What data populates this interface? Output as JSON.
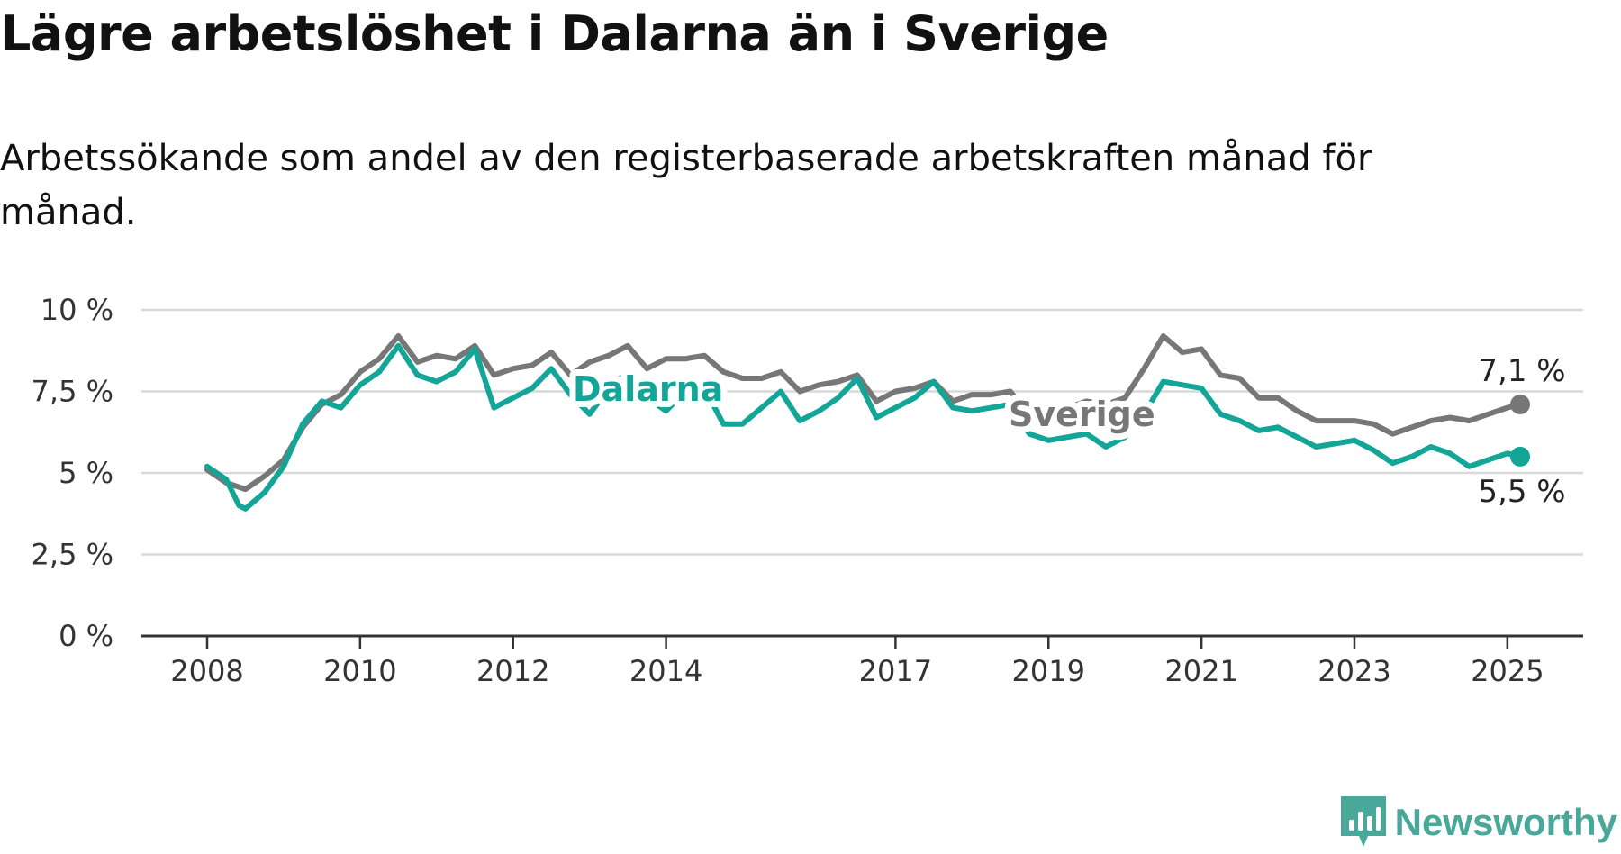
{
  "title": "Lägre arbetslöshet i Dalarna än i Sverige",
  "subtitle": "Arbetssökande som andel av den registerbaserade arbetskraften månad för månad.",
  "brand": {
    "name": "Newsworthy",
    "icon": "newsworthy-logo-icon",
    "color": "#4aa89a"
  },
  "chart_data": {
    "type": "line",
    "title": "Lägre arbetslöshet i Dalarna än i Sverige",
    "subtitle": "Arbetssökande som andel av den registerbaserade arbetskraften månad för månad.",
    "x_start": "2008-01",
    "x_end": "2025-03",
    "y_ticks": [
      0,
      2.5,
      5,
      7.5,
      10
    ],
    "y_tick_labels": [
      "0 %",
      "2,5 %",
      "5 %",
      "7,5 %",
      "10 %"
    ],
    "ylim": [
      0,
      10
    ],
    "x_tick_labels": [
      "2008",
      "2010",
      "2012",
      "2014",
      "2017",
      "2019",
      "2021",
      "2023",
      "2025"
    ],
    "x_tick_dates": [
      "2008-01",
      "2010-01",
      "2012-01",
      "2014-01",
      "2017-01",
      "2019-01",
      "2021-01",
      "2023-01",
      "2025-01"
    ],
    "grid": true,
    "legend": "inline labels",
    "series": [
      {
        "name": "Sverige",
        "color": "#777777",
        "end_label": "7,1 %",
        "points": [
          [
            "2008-01",
            5.1
          ],
          [
            "2008-04",
            4.7
          ],
          [
            "2008-07",
            4.5
          ],
          [
            "2008-10",
            4.9
          ],
          [
            "2009-01",
            5.4
          ],
          [
            "2009-04",
            6.4
          ],
          [
            "2009-07",
            7.1
          ],
          [
            "2009-10",
            7.4
          ],
          [
            "2010-01",
            8.1
          ],
          [
            "2010-04",
            8.5
          ],
          [
            "2010-07",
            9.2
          ],
          [
            "2010-10",
            8.4
          ],
          [
            "2011-01",
            8.6
          ],
          [
            "2011-04",
            8.5
          ],
          [
            "2011-07",
            8.9
          ],
          [
            "2011-10",
            8.0
          ],
          [
            "2012-01",
            8.2
          ],
          [
            "2012-04",
            8.3
          ],
          [
            "2012-07",
            8.7
          ],
          [
            "2012-10",
            8.0
          ],
          [
            "2013-01",
            8.4
          ],
          [
            "2013-04",
            8.6
          ],
          [
            "2013-07",
            8.9
          ],
          [
            "2013-10",
            8.2
          ],
          [
            "2014-01",
            8.5
          ],
          [
            "2014-04",
            8.5
          ],
          [
            "2014-07",
            8.6
          ],
          [
            "2014-10",
            8.1
          ],
          [
            "2015-01",
            7.9
          ],
          [
            "2015-04",
            7.9
          ],
          [
            "2015-07",
            8.1
          ],
          [
            "2015-10",
            7.5
          ],
          [
            "2016-01",
            7.7
          ],
          [
            "2016-04",
            7.8
          ],
          [
            "2016-07",
            8.0
          ],
          [
            "2016-10",
            7.2
          ],
          [
            "2017-01",
            7.5
          ],
          [
            "2017-04",
            7.6
          ],
          [
            "2017-07",
            7.8
          ],
          [
            "2017-10",
            7.2
          ],
          [
            "2018-01",
            7.4
          ],
          [
            "2018-04",
            7.4
          ],
          [
            "2018-07",
            7.5
          ],
          [
            "2018-10",
            6.8
          ],
          [
            "2019-01",
            6.9
          ],
          [
            "2019-04",
            7.0
          ],
          [
            "2019-07",
            7.2
          ],
          [
            "2019-10",
            7.1
          ],
          [
            "2020-01",
            7.3
          ],
          [
            "2020-04",
            8.2
          ],
          [
            "2020-07",
            9.2
          ],
          [
            "2020-10",
            8.7
          ],
          [
            "2021-01",
            8.8
          ],
          [
            "2021-04",
            8.0
          ],
          [
            "2021-07",
            7.9
          ],
          [
            "2021-10",
            7.3
          ],
          [
            "2022-01",
            7.3
          ],
          [
            "2022-04",
            6.9
          ],
          [
            "2022-07",
            6.6
          ],
          [
            "2022-10",
            6.6
          ],
          [
            "2023-01",
            6.6
          ],
          [
            "2023-04",
            6.5
          ],
          [
            "2023-07",
            6.2
          ],
          [
            "2023-10",
            6.4
          ],
          [
            "2024-01",
            6.6
          ],
          [
            "2024-04",
            6.7
          ],
          [
            "2024-07",
            6.6
          ],
          [
            "2024-10",
            6.8
          ],
          [
            "2025-01",
            7.0
          ],
          [
            "2025-03",
            7.1
          ]
        ]
      },
      {
        "name": "Dalarna",
        "color": "#13a698",
        "end_label": "5,5 %",
        "points": [
          [
            "2008-01",
            5.2
          ],
          [
            "2008-04",
            4.8
          ],
          [
            "2008-06",
            4.0
          ],
          [
            "2008-07",
            3.9
          ],
          [
            "2008-10",
            4.4
          ],
          [
            "2009-01",
            5.2
          ],
          [
            "2009-04",
            6.5
          ],
          [
            "2009-07",
            7.2
          ],
          [
            "2009-10",
            7.0
          ],
          [
            "2010-01",
            7.7
          ],
          [
            "2010-04",
            8.1
          ],
          [
            "2010-07",
            8.9
          ],
          [
            "2010-10",
            8.0
          ],
          [
            "2011-01",
            7.8
          ],
          [
            "2011-04",
            8.1
          ],
          [
            "2011-07",
            8.8
          ],
          [
            "2011-10",
            7.0
          ],
          [
            "2012-01",
            7.3
          ],
          [
            "2012-04",
            7.6
          ],
          [
            "2012-07",
            8.2
          ],
          [
            "2012-10",
            7.4
          ],
          [
            "2013-01",
            6.8
          ],
          [
            "2013-04",
            7.6
          ],
          [
            "2013-07",
            8.1
          ],
          [
            "2013-10",
            7.3
          ],
          [
            "2014-01",
            6.9
          ],
          [
            "2014-04",
            7.5
          ],
          [
            "2014-07",
            7.6
          ],
          [
            "2014-10",
            6.5
          ],
          [
            "2015-01",
            6.5
          ],
          [
            "2015-04",
            7.0
          ],
          [
            "2015-07",
            7.5
          ],
          [
            "2015-10",
            6.6
          ],
          [
            "2016-01",
            6.9
          ],
          [
            "2016-04",
            7.3
          ],
          [
            "2016-07",
            7.9
          ],
          [
            "2016-10",
            6.7
          ],
          [
            "2017-01",
            7.0
          ],
          [
            "2017-04",
            7.3
          ],
          [
            "2017-07",
            7.8
          ],
          [
            "2017-10",
            7.0
          ],
          [
            "2018-01",
            6.9
          ],
          [
            "2018-04",
            7.0
          ],
          [
            "2018-07",
            7.1
          ],
          [
            "2018-10",
            6.2
          ],
          [
            "2019-01",
            6.0
          ],
          [
            "2019-04",
            6.1
          ],
          [
            "2019-07",
            6.2
          ],
          [
            "2019-10",
            5.8
          ],
          [
            "2020-01",
            6.1
          ],
          [
            "2020-04",
            6.8
          ],
          [
            "2020-07",
            7.8
          ],
          [
            "2020-10",
            7.7
          ],
          [
            "2021-01",
            7.6
          ],
          [
            "2021-04",
            6.8
          ],
          [
            "2021-07",
            6.6
          ],
          [
            "2021-10",
            6.3
          ],
          [
            "2022-01",
            6.4
          ],
          [
            "2022-04",
            6.1
          ],
          [
            "2022-07",
            5.8
          ],
          [
            "2022-10",
            5.9
          ],
          [
            "2023-01",
            6.0
          ],
          [
            "2023-04",
            5.7
          ],
          [
            "2023-07",
            5.3
          ],
          [
            "2023-10",
            5.5
          ],
          [
            "2024-01",
            5.8
          ],
          [
            "2024-04",
            5.6
          ],
          [
            "2024-07",
            5.2
          ],
          [
            "2024-10",
            5.4
          ],
          [
            "2025-01",
            5.6
          ],
          [
            "2025-03",
            5.5
          ]
        ]
      }
    ]
  }
}
